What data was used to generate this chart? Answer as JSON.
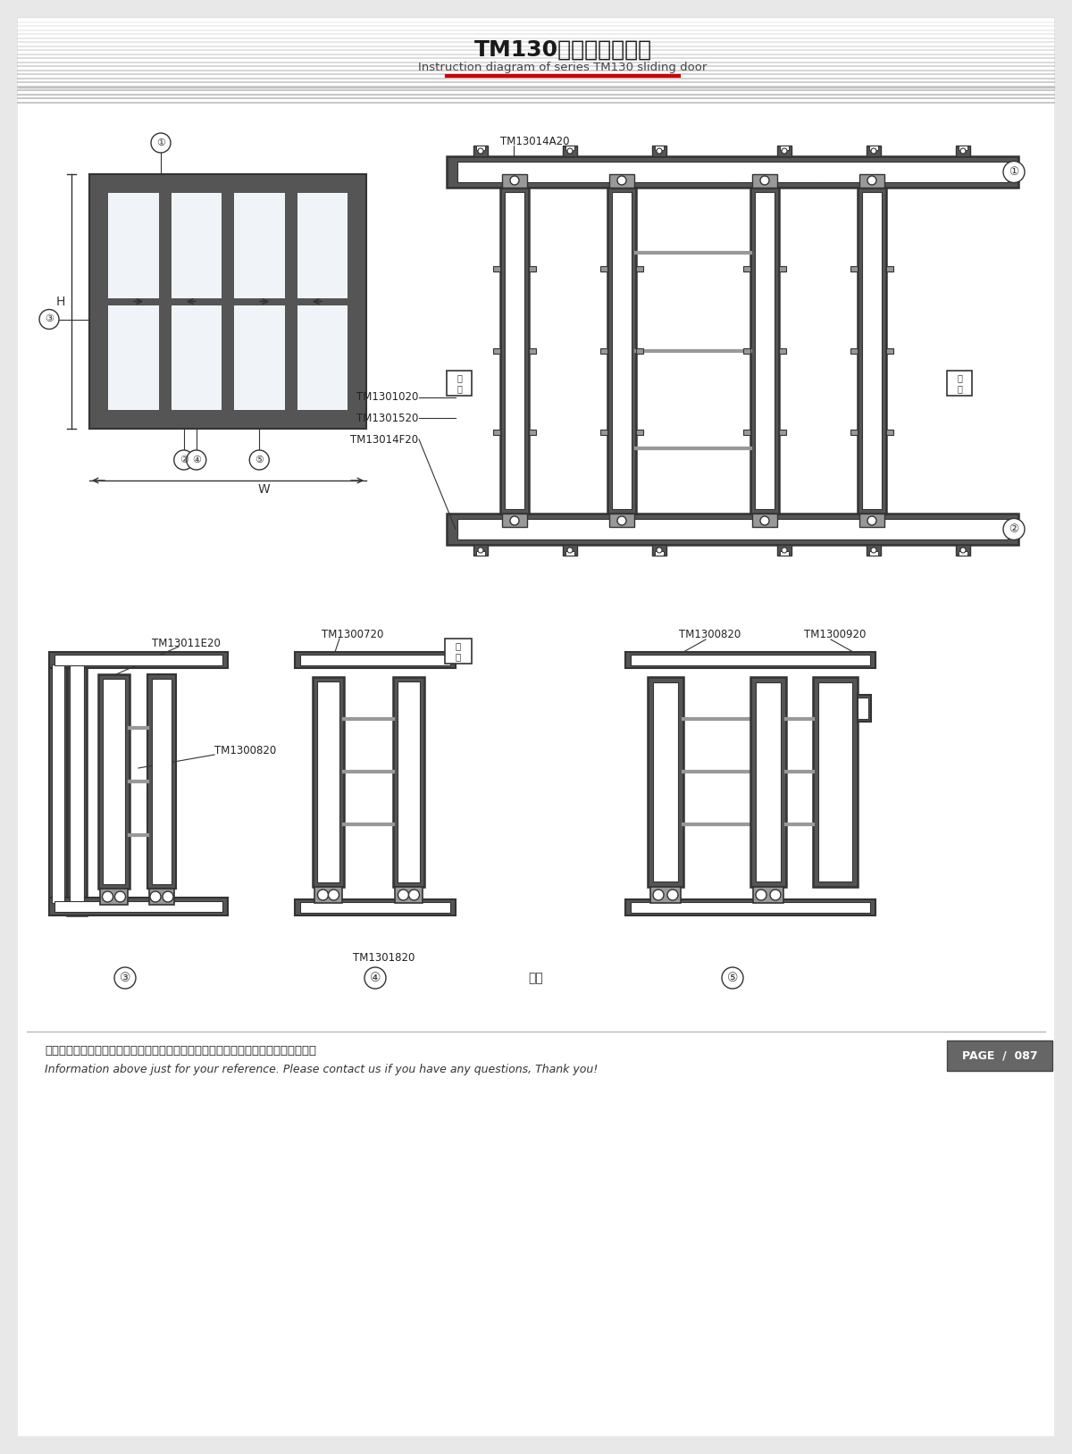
{
  "title_cn": "TM130推拉门窗结构图",
  "title_en": "Instruction diagram of series TM130 sliding door",
  "footer_cn": "图中所示型材截面、装配、编号、尺寸及重量仅供参考。如有疑问，请向本公司查询。",
  "footer_en": "Information above just for your reference. Please contact us if you have any questions, Thank you!",
  "page": "PAGE  /  087",
  "bg_color": "#e8e8e8",
  "paper_color": "#ffffff",
  "frame_color": "#555555",
  "dark_gray": "#666666",
  "med_gray": "#999999",
  "light_gray": "#cccccc",
  "red_line": "#cc0000",
  "line_color": "#333333"
}
